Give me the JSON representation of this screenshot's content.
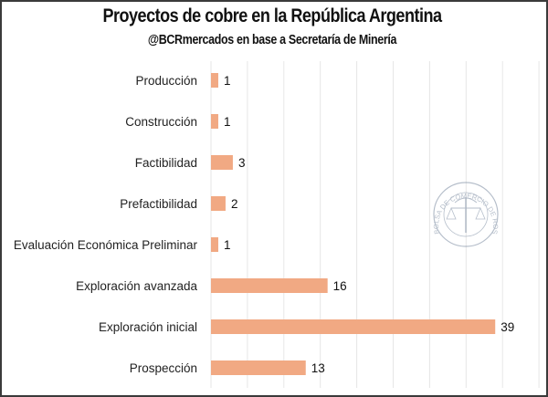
{
  "chart_data": {
    "type": "bar",
    "orientation": "horizontal",
    "title": "Proyectos de cobre en la República Argentina",
    "subtitle": "@BCRmercados en base a Secretaría de Minería",
    "xlabel": "",
    "ylabel": "",
    "categories": [
      "Producción",
      "Construcción",
      "Factibilidad",
      "Prefactibilidad",
      "Evaluación Económica Preliminar",
      "Exploración avanzada",
      "Exploración inicial",
      "Prospección"
    ],
    "values": [
      1,
      1,
      3,
      2,
      1,
      16,
      39,
      13
    ],
    "xlim": [
      0,
      45
    ],
    "x_gridlines_every": 5,
    "grid": true,
    "data_labels": true,
    "legend": "none",
    "bar_color": "#F1A983",
    "watermark": "BOLSA DE COMERCIO DE ROSARIO"
  },
  "colors": {
    "bar": "#F1A983",
    "grid": "#e6e6e6",
    "border": "#3a3a3a",
    "watermark": "#7a8aa0"
  }
}
